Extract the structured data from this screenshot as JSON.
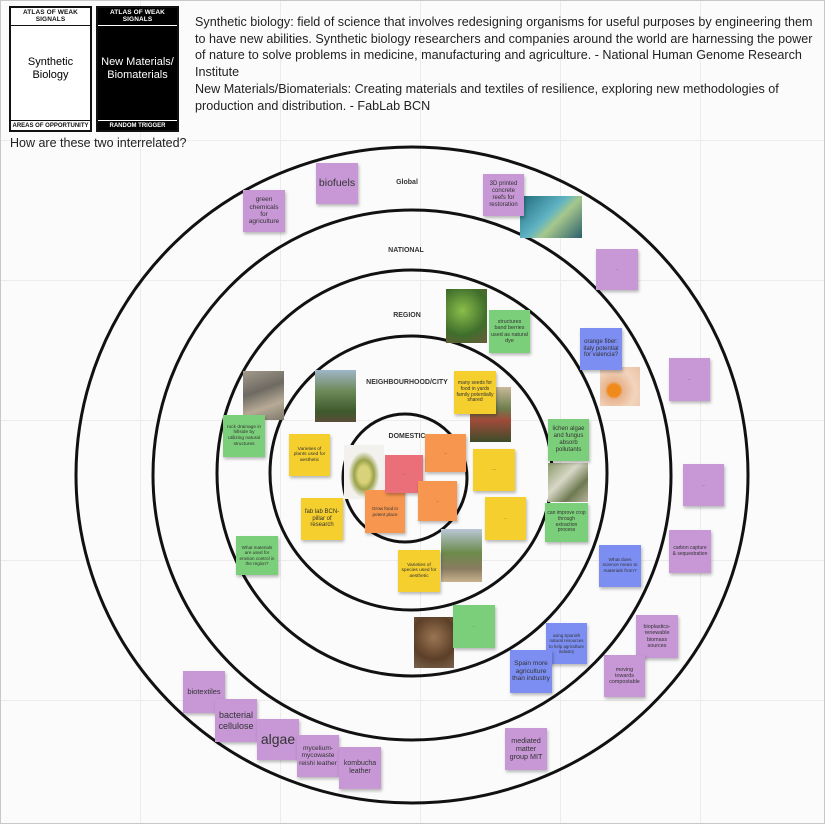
{
  "cards": {
    "left": {
      "top": "ATLAS OF WEAK SIGNALS",
      "title": "Synthetic Biology",
      "bottom": "AREAS OF OPPORTUNITY"
    },
    "right": {
      "top": "ATLAS OF WEAK SIGNALS",
      "title": "New Materials/ Biomaterials",
      "bottom": "RANDOM TRIGGER"
    }
  },
  "question": "How are these two interrelated?",
  "descriptions": {
    "synbio": "Synthetic biology: field of science that involves redesigning organisms for useful purposes by engineering them to have new abilities. Synthetic biology researchers and companies around the world are harnessing the power of nature to solve problems in medicine, manufacturing and agriculture. - National Human Genome Research Institute",
    "biomaterials": "New Materials/Biomaterials: Creating materials and textiles of resilience, exploring new methodologies of production and distribution. - FabLab BCN"
  },
  "rings": {
    "global": "Global",
    "national": "NATIONAL",
    "region": "REGION",
    "neighbourhood": "NEIGHBOURHOOD/CITY",
    "domestic": "DOMESTIC"
  },
  "notes": {
    "n1": "green chemicals for agriculture",
    "n2": "biofuels",
    "n3": "3D printed concrete reefs for restoration",
    "n4": "...",
    "n5": "structures band berries used as natural dye",
    "n6": "orange fiber: italy potential for valencia?",
    "n7": "...",
    "n8": "many seeds for food in yards family potentially shared",
    "n9": "rock drainage in hillside by utilizing natural structures",
    "n10": "Varieties of plants used for aesthetic",
    "n11": "...",
    "n12": "fab lab BCN- pillar of research",
    "n13": "Grow food in potent place",
    "n14": "...",
    "n15": "...",
    "n16": "...",
    "n17": "Varieties of species used for aesthetic",
    "n18": "lichen algae and fungus absorb pollutants",
    "n19": "...",
    "n20": "...",
    "n21": "can improve crop through extraction process",
    "n22": "What materials are used for erosion control in the region?",
    "n23": "...",
    "n24": "What does science mean to materials from?",
    "n25": "carbon capture & sequestration",
    "n26": "...",
    "n27": "using Spanish natural resources to help agriculture industry",
    "n28": "bioplastics- renewable biomass sources",
    "n29": "Spain more agriculture than industry",
    "n30": "moving towards compostable",
    "n31": "biotextiles",
    "n32": "bacterial cellulose",
    "n33": "algae",
    "n34": "mycelium- mycowaste reishi leather",
    "n35": "kombucha leather",
    "n36": "mediated matter group MIT"
  },
  "colors": {
    "purple": "#c797d6",
    "green": "#7ccf7a",
    "yellow": "#f5cf2e",
    "orange": "#f7974f",
    "pink": "#ea6f79",
    "blue": "#7c8ef2"
  }
}
